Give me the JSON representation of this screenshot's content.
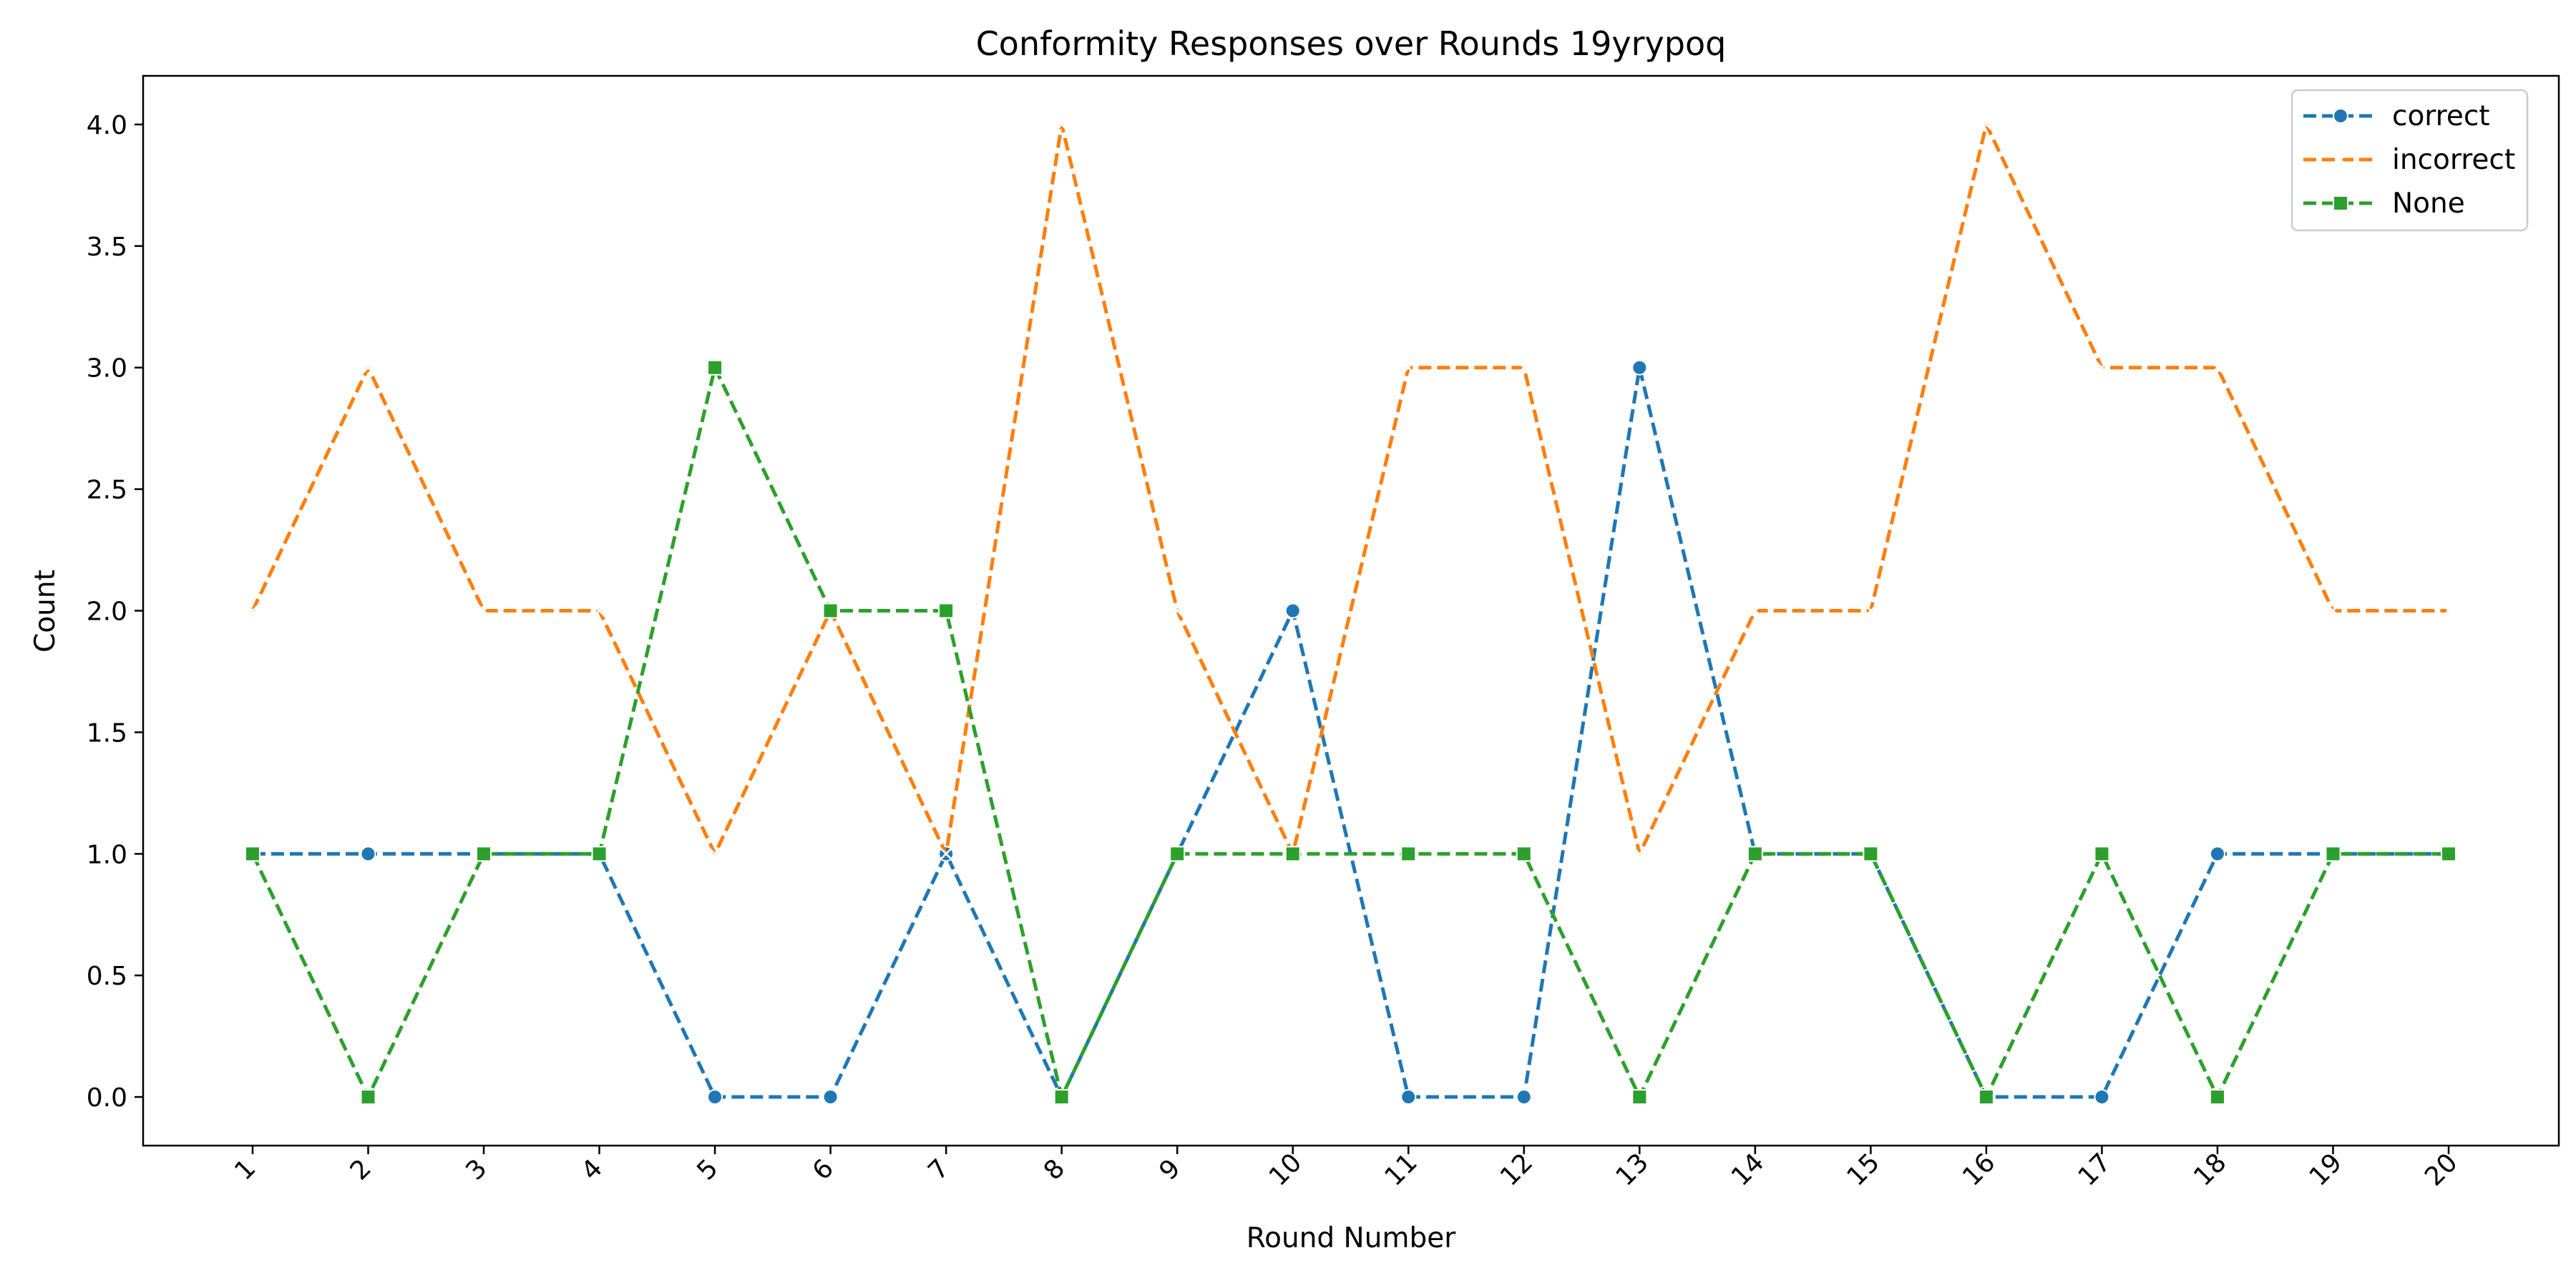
{
  "chart_data": {
    "type": "line",
    "title": "Conformity Responses over Rounds 19yrypoq",
    "xlabel": "Round Number",
    "ylabel": "Count",
    "categories": [
      "1",
      "2",
      "3",
      "4",
      "5",
      "6",
      "7",
      "8",
      "9",
      "10",
      "11",
      "12",
      "13",
      "14",
      "15",
      "16",
      "17",
      "18",
      "19",
      "20"
    ],
    "y_ticks": [
      "0.0",
      "0.5",
      "1.0",
      "1.5",
      "2.0",
      "2.5",
      "3.0",
      "3.5",
      "4.0"
    ],
    "ylim": [
      -0.2,
      4.2
    ],
    "grid": false,
    "legend_position": "top-right",
    "series": [
      {
        "name": "correct",
        "color": "#1f77b4",
        "marker": "circle",
        "values": [
          1,
          1,
          1,
          1,
          0,
          0,
          1,
          0,
          1,
          2,
          0,
          0,
          3,
          1,
          1,
          0,
          0,
          1,
          1,
          1
        ]
      },
      {
        "name": "incorrect",
        "color": "#ff7f0e",
        "marker": "x",
        "values": [
          2,
          3,
          2,
          2,
          1,
          2,
          1,
          4,
          2,
          1,
          3,
          3,
          1,
          2,
          2,
          4,
          3,
          3,
          2,
          2
        ]
      },
      {
        "name": "None",
        "color": "#2ca02c",
        "marker": "square",
        "values": [
          1,
          0,
          1,
          1,
          3,
          2,
          2,
          0,
          1,
          1,
          1,
          1,
          0,
          1,
          1,
          0,
          1,
          0,
          1,
          1
        ]
      }
    ]
  }
}
